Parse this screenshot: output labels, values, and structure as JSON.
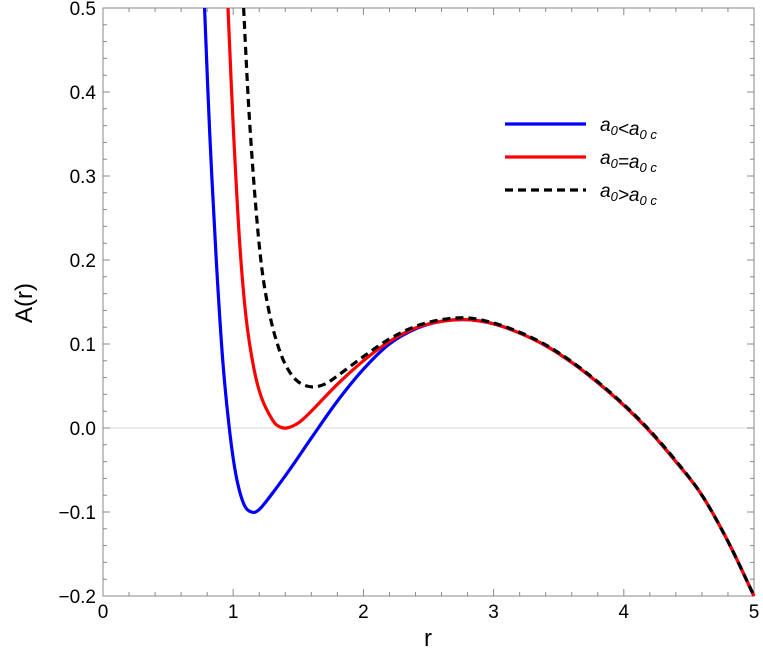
{
  "chart_data": {
    "type": "line",
    "xlabel": "r",
    "ylabel": "A(r)",
    "xlim": [
      0,
      5
    ],
    "ylim": [
      -0.2,
      0.5
    ],
    "x_ticks": [
      "0",
      "1",
      "2",
      "3",
      "4",
      "5"
    ],
    "y_ticks": [
      "−0.2",
      "−0.1",
      "0.0",
      "0.1",
      "0.2",
      "0.3",
      "0.4",
      "0.5"
    ],
    "legend_position": "top-right",
    "series": [
      {
        "name": "a0<a0c",
        "label": {
          "main": "a",
          "sub1": "0",
          "op": "<",
          "main2": "a",
          "sub2": "0 c"
        },
        "color": "#0000ff",
        "dash": "solid",
        "points": [
          [
            0.78,
            0.5
          ],
          [
            0.82,
            0.35
          ],
          [
            0.87,
            0.2
          ],
          [
            0.92,
            0.08
          ],
          [
            0.97,
            0.0
          ],
          [
            1.02,
            -0.055
          ],
          [
            1.08,
            -0.09
          ],
          [
            1.14,
            -0.1
          ],
          [
            1.2,
            -0.097
          ],
          [
            1.3,
            -0.078
          ],
          [
            1.45,
            -0.046
          ],
          [
            1.6,
            -0.012
          ],
          [
            1.8,
            0.032
          ],
          [
            2.0,
            0.07
          ],
          [
            2.2,
            0.1
          ],
          [
            2.4,
            0.118
          ],
          [
            2.6,
            0.127
          ],
          [
            2.8,
            0.129
          ],
          [
            3.0,
            0.124
          ],
          [
            3.2,
            0.113
          ],
          [
            3.4,
            0.098
          ],
          [
            3.6,
            0.078
          ],
          [
            3.8,
            0.054
          ],
          [
            4.0,
            0.027
          ],
          [
            4.2,
            -0.004
          ],
          [
            4.4,
            -0.04
          ],
          [
            4.6,
            -0.08
          ],
          [
            4.8,
            -0.135
          ],
          [
            5.0,
            -0.2
          ]
        ]
      },
      {
        "name": "a0=a0c",
        "label": {
          "main": "a",
          "sub1": "0",
          "op": "=",
          "main2": "a",
          "sub2": "0 c"
        },
        "color": "#ff0000",
        "dash": "solid",
        "points": [
          [
            0.96,
            0.5
          ],
          [
            1.0,
            0.36
          ],
          [
            1.05,
            0.22
          ],
          [
            1.1,
            0.13
          ],
          [
            1.16,
            0.07
          ],
          [
            1.22,
            0.035
          ],
          [
            1.3,
            0.01
          ],
          [
            1.35,
            0.002
          ],
          [
            1.41,
            0.0
          ],
          [
            1.5,
            0.006
          ],
          [
            1.6,
            0.02
          ],
          [
            1.8,
            0.052
          ],
          [
            2.0,
            0.08
          ],
          [
            2.2,
            0.103
          ],
          [
            2.4,
            0.119
          ],
          [
            2.6,
            0.127
          ],
          [
            2.8,
            0.129
          ],
          [
            3.0,
            0.124
          ],
          [
            3.2,
            0.113
          ],
          [
            3.4,
            0.098
          ],
          [
            3.6,
            0.078
          ],
          [
            3.8,
            0.054
          ],
          [
            4.0,
            0.027
          ],
          [
            4.2,
            -0.004
          ],
          [
            4.4,
            -0.04
          ],
          [
            4.6,
            -0.08
          ],
          [
            4.8,
            -0.135
          ],
          [
            5.0,
            -0.2
          ]
        ]
      },
      {
        "name": "a0>a0c",
        "label": {
          "main": "a",
          "sub1": "0",
          "op": ">",
          "main2": "a",
          "sub2": "0 c"
        },
        "color": "#000000",
        "dash": "dashed",
        "points": [
          [
            1.08,
            0.5
          ],
          [
            1.12,
            0.38
          ],
          [
            1.17,
            0.27
          ],
          [
            1.22,
            0.19
          ],
          [
            1.28,
            0.135
          ],
          [
            1.35,
            0.095
          ],
          [
            1.42,
            0.07
          ],
          [
            1.5,
            0.055
          ],
          [
            1.6,
            0.049
          ],
          [
            1.7,
            0.052
          ],
          [
            1.8,
            0.062
          ],
          [
            2.0,
            0.085
          ],
          [
            2.2,
            0.106
          ],
          [
            2.4,
            0.121
          ],
          [
            2.6,
            0.129
          ],
          [
            2.8,
            0.131
          ],
          [
            3.0,
            0.125
          ],
          [
            3.2,
            0.114
          ],
          [
            3.4,
            0.099
          ],
          [
            3.6,
            0.079
          ],
          [
            3.8,
            0.055
          ],
          [
            4.0,
            0.028
          ],
          [
            4.2,
            -0.003
          ],
          [
            4.4,
            -0.039
          ],
          [
            4.6,
            -0.08
          ],
          [
            4.8,
            -0.135
          ],
          [
            5.0,
            -0.2
          ]
        ]
      }
    ]
  }
}
